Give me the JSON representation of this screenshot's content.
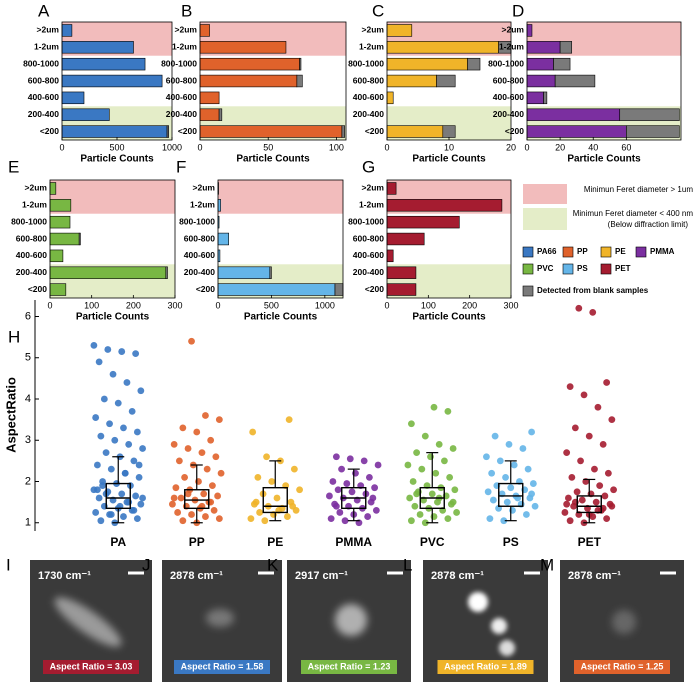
{
  "chart_data": [
    {
      "type": "bar",
      "label": "A",
      "xlabel": "Particle Counts",
      "categories": [
        ">2um",
        "1-2um",
        "800-1000",
        "600-800",
        "400-600",
        "200-400",
        "<200"
      ],
      "series": [
        {
          "name": "PA66",
          "color": "#3a78c3",
          "values": [
            90,
            650,
            755,
            910,
            200,
            430,
            955
          ]
        },
        {
          "name": "Detected from blank samples",
          "color": "#7a7a7a",
          "values": [
            0,
            0,
            0,
            0,
            0,
            0,
            15
          ]
        }
      ],
      "xlim": [
        0,
        1000
      ],
      "xticks": [
        0,
        500,
        1000
      ]
    },
    {
      "type": "bar",
      "label": "B",
      "xlabel": "Particle Counts",
      "categories": [
        ">2um",
        "1-2um",
        "800-1000",
        "600-800",
        "400-600",
        "200-400",
        "<200"
      ],
      "series": [
        {
          "name": "PP",
          "color": "#e0622b",
          "values": [
            7,
            63,
            73,
            71,
            14,
            14,
            104
          ]
        },
        {
          "name": "Detected from blank samples",
          "color": "#7a7a7a",
          "values": [
            0,
            0,
            1,
            4,
            0,
            2,
            2
          ]
        }
      ],
      "xlim": [
        0,
        107
      ],
      "xticks": [
        0,
        50,
        100
      ]
    },
    {
      "type": "bar",
      "label": "C",
      "xlabel": "Particle Counts",
      "categories": [
        ">2um",
        "1-2um",
        "800-1000",
        "600-800",
        "400-600",
        "200-400",
        "<200"
      ],
      "series": [
        {
          "name": "PE",
          "color": "#f0b429",
          "values": [
            4,
            18,
            13,
            8,
            1,
            0,
            9
          ]
        },
        {
          "name": "Detected from blank samples",
          "color": "#7a7a7a",
          "values": [
            0,
            2,
            2,
            3,
            0,
            0,
            2
          ]
        }
      ],
      "xlim": [
        0,
        20
      ],
      "xticks": [
        0,
        10,
        20
      ]
    },
    {
      "type": "bar",
      "label": "D",
      "xlabel": "Particle Counts",
      "categories": [
        ">2um",
        "1-2um",
        "800-1000",
        "600-800",
        "400-600",
        "200-400",
        "<200"
      ],
      "series": [
        {
          "name": "PMMA",
          "color": "#7b2fa0",
          "values": [
            3,
            20,
            16,
            17,
            10,
            56,
            60
          ]
        },
        {
          "name": "Detected from blank samples",
          "color": "#7a7a7a",
          "values": [
            0,
            7,
            10,
            24,
            2,
            36,
            32
          ]
        }
      ],
      "xlim": [
        0,
        93
      ],
      "xticks": [
        0,
        20,
        40,
        60
      ]
    },
    {
      "type": "bar",
      "label": "E",
      "xlabel": "Particle Counts",
      "categories": [
        ">2um",
        "1-2um",
        "800-1000",
        "600-800",
        "400-600",
        "200-400",
        "<200"
      ],
      "series": [
        {
          "name": "PVC",
          "color": "#78b743",
          "values": [
            14,
            50,
            48,
            70,
            31,
            278,
            38
          ]
        },
        {
          "name": "Detected from blank samples",
          "color": "#7a7a7a",
          "values": [
            0,
            0,
            0,
            3,
            0,
            4,
            0
          ]
        }
      ],
      "xlim": [
        0,
        300
      ],
      "xticks": [
        0,
        100,
        200,
        300
      ]
    },
    {
      "type": "bar",
      "label": "F",
      "xlabel": "Particle Counts",
      "categories": [
        ">2um",
        "1-2um",
        "800-1000",
        "600-800",
        "400-600",
        "200-400",
        "<200"
      ],
      "series": [
        {
          "name": "PS",
          "color": "#64b5e8",
          "values": [
            5,
            25,
            10,
            100,
            18,
            485,
            1095
          ]
        },
        {
          "name": "Detected from blank samples",
          "color": "#7a7a7a",
          "values": [
            0,
            0,
            0,
            0,
            0,
            15,
            75
          ]
        }
      ],
      "xlim": [
        0,
        1170
      ],
      "xticks": [
        0,
        500,
        1000
      ]
    },
    {
      "type": "bar",
      "label": "G",
      "xlabel": "Particle Counts",
      "categories": [
        ">2um",
        "1-2um",
        "800-1000",
        "600-800",
        "400-600",
        "200-400",
        "<200"
      ],
      "series": [
        {
          "name": "PET",
          "color": "#a51c30",
          "values": [
            22,
            278,
            175,
            90,
            15,
            70,
            70
          ]
        },
        {
          "name": "Detected from blank samples",
          "color": "#7a7a7a",
          "values": [
            0,
            0,
            0,
            0,
            0,
            0,
            0
          ]
        }
      ],
      "xlim": [
        0,
        300
      ],
      "xticks": [
        0,
        100,
        200,
        300
      ]
    },
    {
      "type": "box",
      "label": "H",
      "ylabel": "AspectRatio",
      "ylim": [
        0.8,
        6.4
      ],
      "yticks": [
        1,
        2,
        3,
        4,
        5,
        6
      ],
      "series": [
        {
          "name": "PA",
          "color": "#3a78c3",
          "whislo": 1.0,
          "q1": 1.35,
          "median": 1.6,
          "q3": 1.95,
          "whishi": 2.6,
          "points": [
            5.3,
            5.2,
            5.15,
            5.1,
            4.9,
            4.6,
            4.4,
            4.2,
            4.0,
            3.9,
            3.7,
            3.55,
            3.4,
            3.3,
            3.2,
            3.1,
            3.0,
            2.9,
            2.8,
            2.7,
            2.6,
            2.5,
            2.4,
            2.3,
            2.2,
            2.1,
            2.0,
            1.95,
            1.9,
            1.8,
            1.75,
            1.7,
            1.65,
            1.6,
            1.55,
            1.5,
            1.45,
            1.4,
            1.35,
            1.3,
            1.25,
            1.2,
            1.15,
            1.1,
            1.05,
            1.0,
            1.5,
            1.6,
            1.7,
            1.4,
            1.3,
            1.8,
            1.2,
            2.2,
            2.4,
            1.9
          ]
        },
        {
          "name": "PP",
          "color": "#e0622b",
          "whislo": 1.0,
          "q1": 1.35,
          "median": 1.55,
          "q3": 1.8,
          "whishi": 2.4,
          "points": [
            5.4,
            3.6,
            3.5,
            3.3,
            3.2,
            3.0,
            2.9,
            2.8,
            2.7,
            2.6,
            2.5,
            2.4,
            2.3,
            2.2,
            2.1,
            2.0,
            1.9,
            1.85,
            1.8,
            1.7,
            1.65,
            1.6,
            1.55,
            1.5,
            1.45,
            1.4,
            1.35,
            1.3,
            1.25,
            1.2,
            1.15,
            1.1,
            1.05,
            1.0,
            1.5,
            1.6,
            1.7,
            1.4
          ]
        },
        {
          "name": "PE",
          "color": "#f0b429",
          "whislo": 1.05,
          "q1": 1.25,
          "median": 1.4,
          "q3": 1.85,
          "whishi": 2.5,
          "points": [
            3.5,
            3.2,
            2.6,
            2.5,
            2.3,
            2.1,
            2.0,
            1.9,
            1.8,
            1.7,
            1.6,
            1.5,
            1.45,
            1.4,
            1.35,
            1.3,
            1.25,
            1.2,
            1.15,
            1.1,
            1.05,
            1.3,
            1.4,
            1.5
          ]
        },
        {
          "name": "PMMA",
          "color": "#7b2fa0",
          "whislo": 1.05,
          "q1": 1.35,
          "median": 1.6,
          "q3": 1.85,
          "whishi": 2.3,
          "points": [
            2.6,
            2.55,
            2.5,
            2.4,
            2.3,
            2.2,
            2.1,
            2.0,
            1.95,
            1.9,
            1.85,
            1.8,
            1.75,
            1.7,
            1.65,
            1.6,
            1.55,
            1.5,
            1.45,
            1.4,
            1.35,
            1.3,
            1.25,
            1.2,
            1.15,
            1.1,
            1.05,
            1.0,
            1.6,
            1.4
          ]
        },
        {
          "name": "PVC",
          "color": "#78b743",
          "whislo": 1.0,
          "q1": 1.35,
          "median": 1.6,
          "q3": 1.85,
          "whishi": 2.7,
          "points": [
            3.8,
            3.7,
            3.4,
            3.1,
            2.9,
            2.8,
            2.7,
            2.6,
            2.5,
            2.4,
            2.3,
            2.2,
            2.1,
            2.0,
            1.9,
            1.85,
            1.8,
            1.75,
            1.7,
            1.65,
            1.6,
            1.55,
            1.5,
            1.45,
            1.4,
            1.35,
            1.3,
            1.25,
            1.2,
            1.15,
            1.1,
            1.05,
            1.0,
            1.6,
            1.5,
            1.7
          ]
        },
        {
          "name": "PS",
          "color": "#64b5e8",
          "whislo": 1.05,
          "q1": 1.4,
          "median": 1.65,
          "q3": 1.95,
          "whishi": 2.5,
          "points": [
            3.2,
            3.1,
            2.9,
            2.8,
            2.6,
            2.5,
            2.4,
            2.3,
            2.2,
            2.1,
            2.0,
            1.95,
            1.9,
            1.85,
            1.8,
            1.75,
            1.7,
            1.65,
            1.6,
            1.55,
            1.5,
            1.45,
            1.4,
            1.35,
            1.3,
            1.2,
            1.1,
            1.05,
            1.6,
            1.7
          ]
        },
        {
          "name": "PET",
          "color": "#a51c30",
          "whislo": 1.0,
          "q1": 1.25,
          "median": 1.4,
          "q3": 1.65,
          "whishi": 2.05,
          "points": [
            6.2,
            6.1,
            4.4,
            4.3,
            4.1,
            3.8,
            3.5,
            3.3,
            3.1,
            2.9,
            2.7,
            2.5,
            2.3,
            2.2,
            2.1,
            2.0,
            1.9,
            1.8,
            1.75,
            1.7,
            1.65,
            1.6,
            1.55,
            1.5,
            1.45,
            1.4,
            1.35,
            1.3,
            1.25,
            1.2,
            1.15,
            1.1,
            1.05,
            1.0,
            1.3,
            1.4,
            1.5,
            1.2,
            1.35,
            1.45
          ]
        }
      ]
    }
  ],
  "legend": {
    "bands": [
      {
        "label": "Minimun Feret diameter > 1um",
        "color": "#f2bcbc",
        "categories": [
          ">2um",
          "1-2um"
        ]
      },
      {
        "label": "Minimun Feret diameter < 400 nm",
        "sublabel": "(Below diffraction limit)",
        "color": "#e4edc8",
        "categories": [
          "200-400",
          "<200"
        ]
      }
    ]
  },
  "image_panels": [
    {
      "label": "I",
      "wavenumber": "1730 cm⁻¹",
      "caption": "Aspect Ratio = 3.03",
      "caption_color": "#a51c30"
    },
    {
      "label": "J",
      "wavenumber": "2878 cm⁻¹",
      "caption": "Aspect Ratio = 1.58",
      "caption_color": "#3a78c3"
    },
    {
      "label": "K",
      "wavenumber": "2917 cm⁻¹",
      "caption": "Aspect Ratio = 1.23",
      "caption_color": "#78b743"
    },
    {
      "label": "L",
      "wavenumber": "2878 cm⁻¹",
      "caption": "Aspect Ratio = 1.89",
      "caption_color": "#f0b429"
    },
    {
      "label": "M",
      "wavenumber": "2878 cm⁻¹",
      "caption": "Aspect Ratio = 1.25",
      "caption_color": "#e0622b"
    }
  ]
}
